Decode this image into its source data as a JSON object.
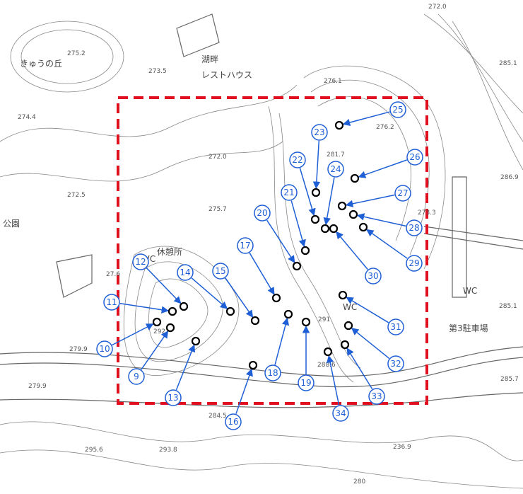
{
  "place_names": [
    "きゅうの丘",
    "湖畔",
    "レストハウス",
    "休憩所",
    "第3駐車場",
    "公園",
    "WC",
    "WC",
    "WC"
  ],
  "elevations": [
    "275.2",
    "273.5",
    "274.4",
    "272.5",
    "272.0",
    "275.7",
    "276.1",
    "281.7",
    "276.2",
    "272.0",
    "285.1",
    "286.9",
    "273.3",
    "285.1",
    "285.7",
    "279.9",
    "279.9",
    "284.5",
    "295.6",
    "293.8",
    "236.9",
    "280",
    "292",
    "291",
    "288.6",
    "27.6"
  ],
  "markers": [
    "9",
    "10",
    "11",
    "12",
    "13",
    "14",
    "15",
    "16",
    "17",
    "18",
    "19",
    "20",
    "21",
    "22",
    "23",
    "24",
    "25",
    "26",
    "27",
    "28",
    "29",
    "30",
    "31",
    "32",
    "33",
    "34"
  ]
}
